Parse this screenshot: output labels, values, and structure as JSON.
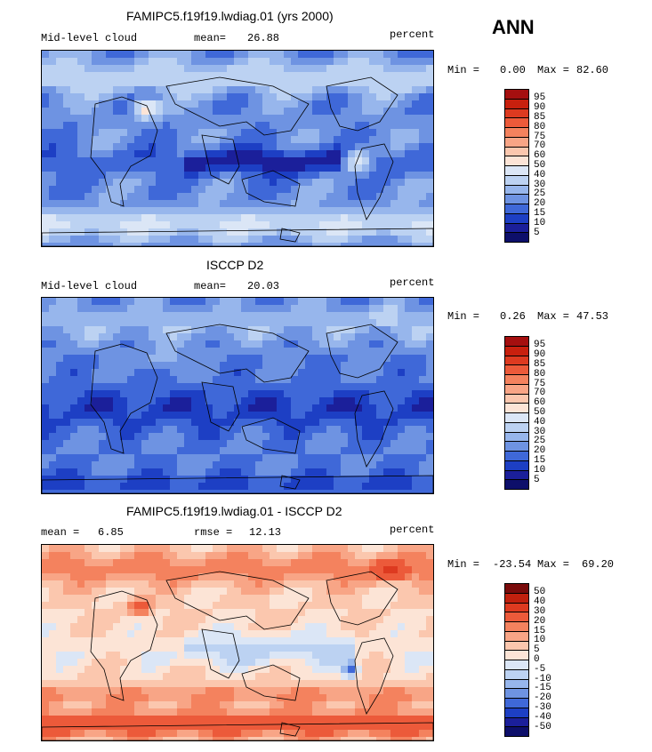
{
  "chart_data": [
    {
      "type": "heatmap",
      "title": "FAMIPC5.f19f19.lwdiag.01 (yrs 2000)",
      "variable": "Mid-level cloud",
      "units": "percent",
      "stat_label": "mean=",
      "stat_value": "26.88",
      "min_label": "Min =",
      "min_value": "0.00",
      "max_label": "Max =",
      "max_value": "82.60",
      "levels": [
        "95",
        "90",
        "85",
        "80",
        "75",
        "70",
        "60",
        "50",
        "40",
        "30",
        "25",
        "20",
        "15",
        "10",
        "5"
      ],
      "colors": [
        "#a50f0f",
        "#c8200e",
        "#dd3a20",
        "#ec5a3a",
        "#f4825e",
        "#f8a586",
        "#fbc7ae",
        "#fce4d6",
        "#dbe6f6",
        "#bcd2f2",
        "#97b6ec",
        "#6e93e2",
        "#3f68d8",
        "#1d3fc4",
        "#1b1f9a",
        "#0d0f6a"
      ]
    },
    {
      "type": "heatmap",
      "title": "ISCCP D2",
      "variable": "Mid-level cloud",
      "units": "percent",
      "stat_label": "mean=",
      "stat_value": "20.03",
      "min_label": "Min =",
      "min_value": "0.26",
      "max_label": "Max =",
      "max_value": "47.53",
      "levels": [
        "95",
        "90",
        "85",
        "80",
        "75",
        "70",
        "60",
        "50",
        "40",
        "30",
        "25",
        "20",
        "15",
        "10",
        "5"
      ],
      "colors": [
        "#a50f0f",
        "#c8200e",
        "#dd3a20",
        "#ec5a3a",
        "#f4825e",
        "#f8a586",
        "#fbc7ae",
        "#fce4d6",
        "#dbe6f6",
        "#bcd2f2",
        "#97b6ec",
        "#6e93e2",
        "#3f68d8",
        "#1d3fc4",
        "#1b1f9a",
        "#0d0f6a"
      ]
    },
    {
      "type": "heatmap",
      "title": "FAMIPC5.f19f19.lwdiag.01 - ISCCP D2",
      "variable": "",
      "units": "percent",
      "stat_label": "mean =",
      "stat_value": "6.85",
      "rmse_label": "rmse =",
      "rmse_value": "12.13",
      "min_label": "Min =",
      "min_value": "-23.54",
      "max_label": "Max =",
      "max_value": "69.20",
      "levels": [
        "50",
        "40",
        "30",
        "20",
        "15",
        "10",
        "5",
        "0",
        "-5",
        "-10",
        "-15",
        "-20",
        "-30",
        "-40",
        "-50"
      ],
      "colors": [
        "#7a0b0b",
        "#c0200e",
        "#dd3a20",
        "#ec5a3a",
        "#f4825e",
        "#f8a586",
        "#fbc7ae",
        "#fce4d6",
        "#dbe6f6",
        "#bcd2f2",
        "#97b6ec",
        "#6e93e2",
        "#3f68d8",
        "#1d3fc4",
        "#1b1f9a",
        "#0d0f6a"
      ]
    }
  ],
  "season": "ANN"
}
